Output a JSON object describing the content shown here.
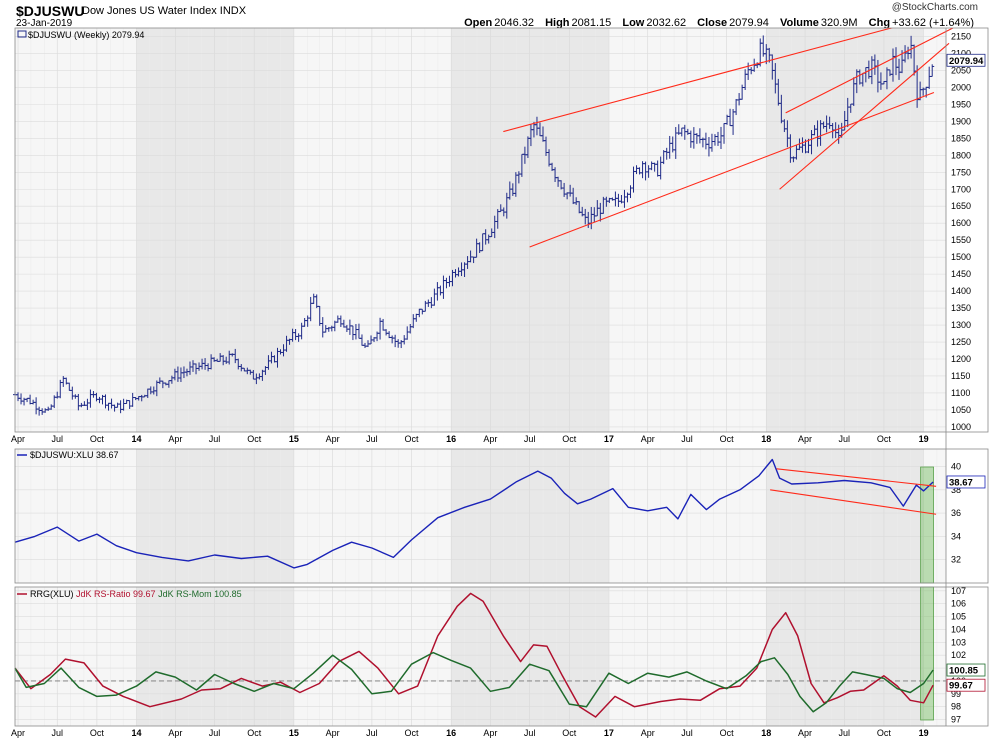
{
  "header": {
    "symbol": "$DJUSWU",
    "name": "Dow Jones US Water Index",
    "exchange": "INDX",
    "date": "23-Jan-2019",
    "credit": "@StockCharts.com",
    "open_label": "Open",
    "open": "2046.32",
    "high_label": "High",
    "high": "2081.15",
    "low_label": "Low",
    "low": "2032.62",
    "close_label": "Close",
    "close": "2079.94",
    "volume_label": "Volume",
    "volume": "320.9M",
    "chg_label": "Chg",
    "chg": "+33.62 (+1.64%)"
  },
  "colors": {
    "price_bars": "#1f2a88",
    "trendlines": "#ff2a1a",
    "rs_line": "#1a23b8",
    "rs_ratio": "#b0102e",
    "rs_momentum": "#1f6b2c",
    "highlight": "#7dbf6c",
    "band_shade": "#e8e8e8"
  },
  "chart_data": [
    {
      "type": "ohlc",
      "panel": "price",
      "label": "$DJUSWU (Weekly) 2079.94",
      "last_value_tag": "2079.94",
      "y_ticks": [
        1000,
        1050,
        1100,
        1150,
        1200,
        1250,
        1300,
        1350,
        1400,
        1450,
        1500,
        1550,
        1600,
        1650,
        1700,
        1750,
        1800,
        1850,
        1900,
        1950,
        2000,
        2050,
        2100,
        2150
      ],
      "ylim": [
        985,
        2175
      ],
      "x_ticks": [
        "Apr",
        "Jul",
        "Oct",
        "14",
        "Apr",
        "Jul",
        "Oct",
        "15",
        "Apr",
        "Jul",
        "Oct",
        "16",
        "Apr",
        "Jul",
        "Oct",
        "17",
        "Apr",
        "Jul",
        "Oct",
        "18",
        "Apr",
        "Jul",
        "Oct",
        "19"
      ],
      "close_path": [
        [
          "2013-03-25",
          1095
        ],
        [
          "2013-05-01",
          1075
        ],
        [
          "2013-06-10",
          1040
        ],
        [
          "2013-07-15",
          1140
        ],
        [
          "2013-08-20",
          1060
        ],
        [
          "2013-10-01",
          1095
        ],
        [
          "2013-11-15",
          1055
        ],
        [
          "2013-12-20",
          1075
        ],
        [
          "2014-02-10",
          1120
        ],
        [
          "2014-04-15",
          1160
        ],
        [
          "2014-06-15",
          1185
        ],
        [
          "2014-08-15",
          1205
        ],
        [
          "2014-09-25",
          1145
        ],
        [
          "2014-11-01",
          1180
        ],
        [
          "2014-12-10",
          1240
        ],
        [
          "2015-01-20",
          1290
        ],
        [
          "2015-02-15",
          1375
        ],
        [
          "2015-03-10",
          1280
        ],
        [
          "2015-04-20",
          1320
        ],
        [
          "2015-05-20",
          1280
        ],
        [
          "2015-06-20",
          1225
        ],
        [
          "2015-07-20",
          1310
        ],
        [
          "2015-09-01",
          1240
        ],
        [
          "2015-10-20",
          1340
        ],
        [
          "2015-12-01",
          1395
        ],
        [
          "2016-01-15",
          1470
        ],
        [
          "2016-02-20",
          1510
        ],
        [
          "2016-03-20",
          1560
        ],
        [
          "2016-04-20",
          1620
        ],
        [
          "2016-05-20",
          1690
        ],
        [
          "2016-06-20",
          1810
        ],
        [
          "2016-07-10",
          1890
        ],
        [
          "2016-08-01",
          1830
        ],
        [
          "2016-09-01",
          1740
        ],
        [
          "2016-10-10",
          1660
        ],
        [
          "2016-11-10",
          1600
        ],
        [
          "2016-12-15",
          1650
        ],
        [
          "2017-01-20",
          1660
        ],
        [
          "2017-02-20",
          1720
        ],
        [
          "2017-03-20",
          1780
        ],
        [
          "2017-04-20",
          1750
        ],
        [
          "2017-05-20",
          1820
        ],
        [
          "2017-06-20",
          1870
        ],
        [
          "2017-07-20",
          1850
        ],
        [
          "2017-08-20",
          1840
        ],
        [
          "2017-09-20",
          1860
        ],
        [
          "2017-10-20",
          1940
        ],
        [
          "2017-11-20",
          2050
        ],
        [
          "2017-12-20",
          2110
        ],
        [
          "2018-01-10",
          2070
        ],
        [
          "2018-02-05",
          1920
        ],
        [
          "2018-03-01",
          1800
        ],
        [
          "2018-04-01",
          1830
        ],
        [
          "2018-05-01",
          1870
        ],
        [
          "2018-06-01",
          1910
        ],
        [
          "2018-06-20",
          1830
        ],
        [
          "2018-07-10",
          1950
        ],
        [
          "2018-08-01",
          2030
        ],
        [
          "2018-09-01",
          2060
        ],
        [
          "2018-10-01",
          2000
        ],
        [
          "2018-10-20",
          2080
        ],
        [
          "2018-11-10",
          2050
        ],
        [
          "2018-12-01",
          2140
        ],
        [
          "2018-12-20",
          1960
        ],
        [
          "2019-01-10",
          2030
        ],
        [
          "2019-01-23",
          2080
        ]
      ],
      "trendlines": [
        {
          "from": [
            "2016-05-01",
            1870
          ],
          "to": [
            "2019-02-28",
            2220
          ]
        },
        {
          "from": [
            "2016-07-01",
            1530
          ],
          "to": [
            "2019-01-25",
            1985
          ]
        },
        {
          "from": [
            "2018-02-01",
            1700
          ],
          "to": [
            "2019-03-01",
            2130
          ]
        },
        {
          "from": [
            "2018-02-15",
            1925
          ],
          "to": [
            "2019-03-10",
            2175
          ]
        }
      ]
    },
    {
      "type": "line",
      "panel": "relative_strength",
      "label": "$DJUSWU:XLU 38.67",
      "last_value_tag": "38.67",
      "y_ticks": [
        32,
        34,
        36,
        38,
        40
      ],
      "ylim": [
        30,
        41.5
      ],
      "series": [
        {
          "values": [
            [
              "2013-03-25",
              33.5
            ],
            [
              "2013-05-10",
              34.0
            ],
            [
              "2013-07-01",
              34.8
            ],
            [
              "2013-08-20",
              33.6
            ],
            [
              "2013-10-01",
              34.2
            ],
            [
              "2013-11-15",
              33.2
            ],
            [
              "2014-01-01",
              32.6
            ],
            [
              "2014-03-01",
              32.2
            ],
            [
              "2014-05-01",
              31.9
            ],
            [
              "2014-07-01",
              32.4
            ],
            [
              "2014-09-01",
              32.1
            ],
            [
              "2014-11-01",
              32.3
            ],
            [
              "2015-01-01",
              31.3
            ],
            [
              "2015-02-01",
              31.6
            ],
            [
              "2015-04-01",
              32.8
            ],
            [
              "2015-05-15",
              33.5
            ],
            [
              "2015-07-01",
              33.0
            ],
            [
              "2015-08-20",
              32.2
            ],
            [
              "2015-10-01",
              33.7
            ],
            [
              "2015-12-01",
              35.6
            ],
            [
              "2016-02-01",
              36.5
            ],
            [
              "2016-04-01",
              37.2
            ],
            [
              "2016-06-01",
              38.7
            ],
            [
              "2016-07-20",
              39.6
            ],
            [
              "2016-08-20",
              39.0
            ],
            [
              "2016-09-20",
              37.7
            ],
            [
              "2016-10-20",
              36.8
            ],
            [
              "2016-11-20",
              37.2
            ],
            [
              "2017-01-10",
              38.1
            ],
            [
              "2017-02-15",
              36.5
            ],
            [
              "2017-04-01",
              36.2
            ],
            [
              "2017-05-15",
              36.5
            ],
            [
              "2017-06-10",
              35.5
            ],
            [
              "2017-07-10",
              37.6
            ],
            [
              "2017-08-15",
              36.3
            ],
            [
              "2017-09-15",
              37.2
            ],
            [
              "2017-11-01",
              38.0
            ],
            [
              "2017-12-15",
              39.2
            ],
            [
              "2018-01-15",
              40.6
            ],
            [
              "2018-02-01",
              39.0
            ],
            [
              "2018-03-01",
              38.5
            ],
            [
              "2018-05-01",
              38.6
            ],
            [
              "2018-07-01",
              38.8
            ],
            [
              "2018-09-01",
              38.6
            ],
            [
              "2018-10-15",
              38.2
            ],
            [
              "2018-11-15",
              36.6
            ],
            [
              "2018-12-15",
              38.4
            ],
            [
              "2019-01-01",
              37.9
            ],
            [
              "2019-01-23",
              38.67
            ]
          ]
        }
      ],
      "trendlines": [
        {
          "from": [
            "2018-01-25",
            39.8
          ],
          "to": [
            "2019-01-30",
            38.3
          ]
        },
        {
          "from": [
            "2018-01-10",
            38.0
          ],
          "to": [
            "2019-01-30",
            35.9
          ]
        }
      ],
      "highlight_from": "2018-12-25"
    },
    {
      "type": "line",
      "panel": "rrg",
      "label_prefix": "RRG(XLU)",
      "ratio_legend": "JdK RS-Ratio 99.67",
      "mom_legend": "JdK RS-Mom 100.85",
      "ratio_tag": "99.67",
      "mom_tag": "100.85",
      "reference_line": 100,
      "y_ticks": [
        97,
        98,
        99,
        100,
        101,
        102,
        103,
        104,
        105,
        106,
        107
      ],
      "ylim": [
        96.5,
        107.3
      ],
      "series": [
        {
          "name": "JdK RS-Ratio",
          "values": [
            [
              "2013-03-25",
              101.0
            ],
            [
              "2013-05-01",
              99.4
            ],
            [
              "2013-06-15",
              100.5
            ],
            [
              "2013-07-20",
              101.7
            ],
            [
              "2013-09-01",
              101.4
            ],
            [
              "2013-10-15",
              99.6
            ],
            [
              "2013-12-01",
              98.8
            ],
            [
              "2014-02-01",
              98.0
            ],
            [
              "2014-04-15",
              98.6
            ],
            [
              "2014-06-01",
              99.3
            ],
            [
              "2014-07-15",
              99.4
            ],
            [
              "2014-09-01",
              100.2
            ],
            [
              "2014-10-20",
              99.6
            ],
            [
              "2014-12-01",
              99.9
            ],
            [
              "2015-01-15",
              99.1
            ],
            [
              "2015-03-01",
              99.8
            ],
            [
              "2015-04-15",
              101.5
            ],
            [
              "2015-06-01",
              102.3
            ],
            [
              "2015-07-15",
              101.0
            ],
            [
              "2015-09-01",
              99.0
            ],
            [
              "2015-10-15",
              99.6
            ],
            [
              "2015-12-01",
              103.5
            ],
            [
              "2016-01-15",
              105.8
            ],
            [
              "2016-02-15",
              106.8
            ],
            [
              "2016-03-15",
              106.2
            ],
            [
              "2016-05-01",
              103.5
            ],
            [
              "2016-06-10",
              101.5
            ],
            [
              "2016-07-10",
              102.8
            ],
            [
              "2016-08-10",
              102.7
            ],
            [
              "2016-09-15",
              100.4
            ],
            [
              "2016-10-25",
              98.0
            ],
            [
              "2016-12-01",
              97.2
            ],
            [
              "2017-01-15",
              98.8
            ],
            [
              "2017-03-01",
              98.0
            ],
            [
              "2017-05-01",
              98.4
            ],
            [
              "2017-06-15",
              98.6
            ],
            [
              "2017-08-01",
              98.5
            ],
            [
              "2017-09-15",
              99.4
            ],
            [
              "2017-11-01",
              99.6
            ],
            [
              "2017-12-10",
              101.0
            ],
            [
              "2018-01-15",
              104.0
            ],
            [
              "2018-02-15",
              105.3
            ],
            [
              "2018-03-15",
              103.5
            ],
            [
              "2018-04-15",
              99.8
            ],
            [
              "2018-05-15",
              98.3
            ],
            [
              "2018-06-15",
              98.7
            ],
            [
              "2018-07-15",
              99.2
            ],
            [
              "2018-08-15",
              99.3
            ],
            [
              "2018-10-01",
              100.4
            ],
            [
              "2018-11-01",
              99.6
            ],
            [
              "2018-12-01",
              98.5
            ],
            [
              "2019-01-01",
              98.3
            ],
            [
              "2019-01-23",
              99.67
            ]
          ]
        },
        {
          "name": "JdK RS-Mom",
          "values": [
            [
              "2013-03-25",
              101.0
            ],
            [
              "2013-04-20",
              99.5
            ],
            [
              "2013-06-01",
              99.8
            ],
            [
              "2013-07-10",
              101.0
            ],
            [
              "2013-08-20",
              99.5
            ],
            [
              "2013-10-01",
              98.8
            ],
            [
              "2013-11-15",
              98.9
            ],
            [
              "2014-01-01",
              99.6
            ],
            [
              "2014-02-15",
              100.7
            ],
            [
              "2014-04-01",
              100.3
            ],
            [
              "2014-05-20",
              99.3
            ],
            [
              "2014-07-01",
              100.5
            ],
            [
              "2014-08-15",
              99.8
            ],
            [
              "2014-10-01",
              99.2
            ],
            [
              "2014-11-15",
              99.8
            ],
            [
              "2015-01-01",
              99.4
            ],
            [
              "2015-02-15",
              100.6
            ],
            [
              "2015-04-01",
              102.0
            ],
            [
              "2015-05-15",
              100.9
            ],
            [
              "2015-07-01",
              99.0
            ],
            [
              "2015-08-15",
              99.2
            ],
            [
              "2015-10-01",
              101.3
            ],
            [
              "2015-11-20",
              102.2
            ],
            [
              "2016-01-01",
              101.6
            ],
            [
              "2016-02-15",
              101.0
            ],
            [
              "2016-04-01",
              99.2
            ],
            [
              "2016-05-15",
              99.5
            ],
            [
              "2016-07-01",
              101.3
            ],
            [
              "2016-08-15",
              100.8
            ],
            [
              "2016-10-01",
              98.2
            ],
            [
              "2016-11-10",
              98.0
            ],
            [
              "2017-01-01",
              100.6
            ],
            [
              "2017-02-15",
              99.8
            ],
            [
              "2017-04-01",
              100.6
            ],
            [
              "2017-05-20",
              100.3
            ],
            [
              "2017-07-01",
              100.7
            ],
            [
              "2017-08-15",
              100.0
            ],
            [
              "2017-10-01",
              99.4
            ],
            [
              "2017-11-15",
              100.4
            ],
            [
              "2017-12-20",
              101.5
            ],
            [
              "2018-01-20",
              101.8
            ],
            [
              "2018-02-20",
              100.5
            ],
            [
              "2018-03-20",
              98.8
            ],
            [
              "2018-04-20",
              97.6
            ],
            [
              "2018-05-20",
              98.3
            ],
            [
              "2018-06-20",
              99.6
            ],
            [
              "2018-07-20",
              100.7
            ],
            [
              "2018-08-20",
              100.5
            ],
            [
              "2018-10-01",
              100.2
            ],
            [
              "2018-11-01",
              99.4
            ],
            [
              "2018-12-01",
              99.1
            ],
            [
              "2019-01-01",
              99.8
            ],
            [
              "2019-01-23",
              100.85
            ]
          ]
        }
      ],
      "highlight_from": "2018-12-25"
    }
  ]
}
